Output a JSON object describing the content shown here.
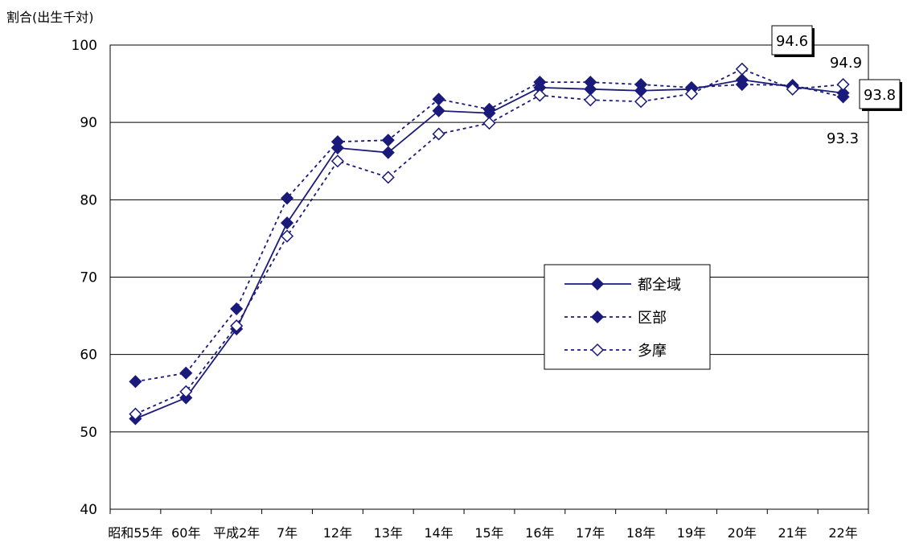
{
  "chart_data": {
    "type": "line",
    "ylabel": "割合(出生千対)",
    "ylim": [
      40,
      100
    ],
    "yticks": [
      40,
      50,
      60,
      70,
      80,
      90,
      100
    ],
    "categories": [
      "昭和55年",
      "60年",
      "平成2年",
      "7年",
      "12年",
      "13年",
      "14年",
      "15年",
      "16年",
      "17年",
      "18年",
      "19年",
      "20年",
      "21年",
      "22年"
    ],
    "series": [
      {
        "name": "都全域",
        "style": "solid",
        "marker": "filled-diamond",
        "values": [
          51.7,
          54.4,
          63.3,
          77.0,
          86.7,
          86.1,
          91.5,
          91.2,
          94.5,
          94.3,
          94.1,
          94.3,
          95.5,
          94.6,
          93.8
        ]
      },
      {
        "name": "区部",
        "style": "dotted",
        "marker": "filled-diamond",
        "values": [
          56.5,
          57.6,
          65.9,
          80.2,
          87.5,
          87.7,
          93.0,
          91.7,
          95.2,
          95.2,
          94.9,
          94.5,
          94.9,
          94.8,
          93.3
        ]
      },
      {
        "name": "多摩",
        "style": "dotted",
        "marker": "open-diamond",
        "values": [
          52.3,
          55.2,
          63.7,
          75.3,
          85.0,
          82.9,
          88.5,
          89.9,
          93.5,
          92.9,
          92.7,
          93.7,
          96.9,
          94.3,
          94.9
        ]
      }
    ],
    "data_labels": [
      {
        "text": "94.6",
        "boxed": true
      },
      {
        "text": "94.9",
        "boxed": false
      },
      {
        "text": "93.8",
        "boxed": true
      },
      {
        "text": "93.3",
        "boxed": false
      }
    ],
    "legend": {
      "position": "center-right"
    },
    "grid": true,
    "colors": {
      "line": "#1a1a7a",
      "marker": "#1a1a7a",
      "grid": "#000000"
    }
  }
}
